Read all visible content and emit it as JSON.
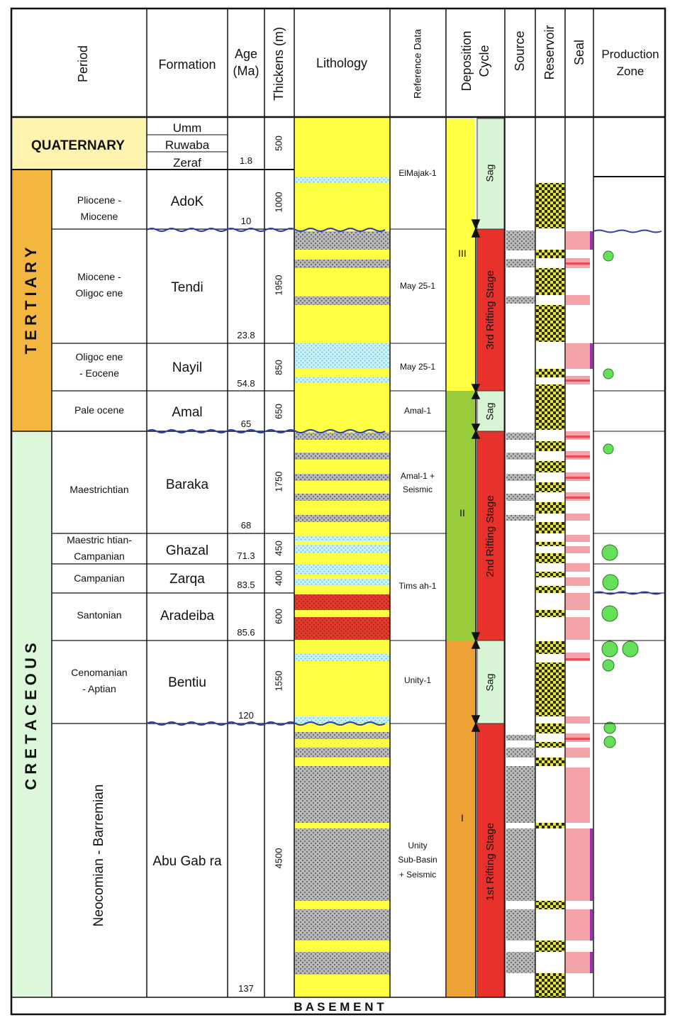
{
  "headers": {
    "period": "Period",
    "formation": "Formation",
    "age": [
      "Age",
      "(Ma)"
    ],
    "thickness": "Thickens (m)",
    "lithology": "Lithology",
    "reference": "Reference Data",
    "deposition": [
      "Deposition",
      "Cycle"
    ],
    "source": "Source",
    "reservoir": "Reservoir",
    "seal": "Seal",
    "production": [
      "Production",
      "Zone"
    ]
  },
  "eras": {
    "quaternary": "QUATERNARY",
    "tertiary": "T E R T I A R Y",
    "cretaceous": "C R E T A C E O U S"
  },
  "quaternary_formations": [
    "Umm",
    "Ruwaba",
    "Zeraf"
  ],
  "rows": [
    {
      "period": [
        "Pliocene -",
        "Miocene"
      ],
      "formation": "AdoK",
      "age": "10",
      "thickness": "1000"
    },
    {
      "period": [
        "Miocene -",
        "Oligoc ene"
      ],
      "formation": "Tendi",
      "age": "23.8",
      "thickness": "1950"
    },
    {
      "period": [
        "Oligoc ene",
        "- Eocene"
      ],
      "formation": "Nayil",
      "age": "54.8",
      "thickness": "850"
    },
    {
      "period": [
        "Pale ocene"
      ],
      "formation": "Amal",
      "age": "65",
      "thickness": "650"
    },
    {
      "period": [
        "Maestrichtian"
      ],
      "formation": "Baraka",
      "age": "68",
      "thickness": "1750"
    },
    {
      "period": [
        "Maestric htian-",
        "Campanian"
      ],
      "formation": "Ghazal",
      "age": "71.3",
      "thickness": "450"
    },
    {
      "period": [
        "Campanian"
      ],
      "formation": "Zarqa",
      "age": "83.5",
      "thickness": "400"
    },
    {
      "period": [
        "Santonian"
      ],
      "formation": "Aradeiba",
      "age": "85.6",
      "thickness": "600"
    },
    {
      "period": [
        "Cenomanian",
        "- Aptian"
      ],
      "formation": "Bentiu",
      "age": "120",
      "thickness": "1550"
    },
    {
      "period": [
        "Neocomian - Barremian"
      ],
      "formation": "Abu Gab ra",
      "age": "137",
      "thickness": "4500"
    }
  ],
  "quaternary_age": "1.8",
  "quaternary_thickness": "500",
  "references": {
    "elmajak": "ElMajak-1",
    "may1": "May 25-1",
    "may2": "May 25-1",
    "amal": "Amal-1",
    "amal_seismic": [
      "Amal-1 +",
      "Seismic"
    ],
    "timsah": "Tims ah-1",
    "unity": "Unity-1",
    "unity_basin": [
      "Unity",
      "Sub-Basin",
      "+ Seismic"
    ]
  },
  "cycles": {
    "c3": "III",
    "c2": "II",
    "c1": "I"
  },
  "stages": {
    "sag": "Sag",
    "rift3": "3rd Rifting Stage",
    "rift2": "2nd Rifting Stage",
    "rift1": "1st Rifting Stage"
  },
  "basement": "B A S E M E N T",
  "colors": {
    "quaternary": "#fff3b0",
    "tertiary": "#f3b73f",
    "cretaceous": "#dcf7dc",
    "sandstone": "#ffff44",
    "rift": "#e8312a",
    "sag": "#d8f5d8",
    "cycle3": "#ffff44",
    "cycle2": "#9acd3c",
    "cycle1": "#eea236",
    "seal": "#f4a3a8",
    "production": "#66e05a"
  }
}
